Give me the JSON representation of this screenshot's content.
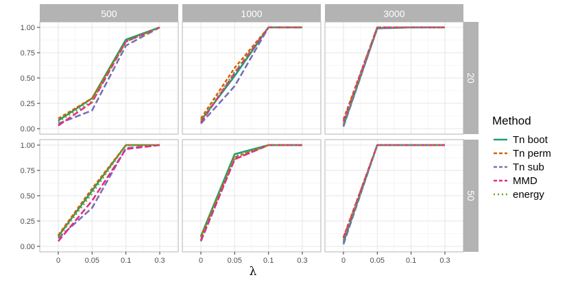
{
  "chart_data": {
    "type": "line",
    "facet_columns": [
      "500",
      "1000",
      "3000"
    ],
    "facet_rows": [
      "20",
      "50"
    ],
    "xlabel": "λ",
    "ylabel": "",
    "categories": [
      "0",
      "0.05",
      "0.1",
      "0.3"
    ],
    "y_ticks": [
      "0.00",
      "0.25",
      "0.50",
      "0.75",
      "1.00"
    ],
    "ylim": [
      0,
      1
    ],
    "grid": true,
    "legend": {
      "title": "Method",
      "position": "right",
      "entries": [
        {
          "name": "Tn boot",
          "color": "#1B9E77",
          "dash": "solid"
        },
        {
          "name": "Tn perm",
          "color": "#D95F02",
          "dash": "dashed"
        },
        {
          "name": "Tn sub",
          "color": "#7570B3",
          "dash": "longdash"
        },
        {
          "name": "MMD",
          "color": "#E7298A",
          "dash": "longdash"
        },
        {
          "name": "energy",
          "color": "#66A61E",
          "dash": "dotted"
        }
      ]
    },
    "panels": [
      {
        "col": "500",
        "row": "20",
        "series": {
          "Tn boot": [
            0.08,
            0.3,
            0.88,
            1.0
          ],
          "Tn perm": [
            0.1,
            0.3,
            0.86,
            1.0
          ],
          "Tn sub": [
            0.05,
            0.18,
            0.82,
            1.0
          ],
          "MMD": [
            0.03,
            0.26,
            0.86,
            1.0
          ],
          "energy": [
            0.07,
            0.27,
            0.86,
            1.0
          ]
        }
      },
      {
        "col": "1000",
        "row": "20",
        "series": {
          "Tn boot": [
            0.08,
            0.52,
            1.0,
            1.0
          ],
          "Tn perm": [
            0.1,
            0.6,
            1.0,
            1.0
          ],
          "Tn sub": [
            0.05,
            0.42,
            1.0,
            1.0
          ],
          "MMD": [
            0.06,
            0.55,
            1.0,
            1.0
          ],
          "energy": [
            0.08,
            0.56,
            1.0,
            1.0
          ]
        }
      },
      {
        "col": "3000",
        "row": "20",
        "series": {
          "Tn boot": [
            0.03,
            0.99,
            1.0,
            1.0
          ],
          "Tn perm": [
            0.09,
            1.0,
            1.0,
            1.0
          ],
          "Tn sub": [
            0.02,
            0.99,
            1.0,
            1.0
          ],
          "MMD": [
            0.07,
            1.0,
            1.0,
            1.0
          ],
          "energy": [
            0.05,
            1.0,
            1.0,
            1.0
          ]
        }
      },
      {
        "col": "500",
        "row": "50",
        "series": {
          "Tn boot": [
            0.1,
            0.55,
            1.0,
            1.0
          ],
          "Tn perm": [
            0.11,
            0.57,
            1.0,
            1.0
          ],
          "Tn sub": [
            0.08,
            0.38,
            0.97,
            1.0
          ],
          "MMD": [
            0.05,
            0.45,
            0.96,
            1.0
          ],
          "energy": [
            0.09,
            0.52,
            1.0,
            1.0
          ]
        }
      },
      {
        "col": "1000",
        "row": "50",
        "series": {
          "Tn boot": [
            0.1,
            0.91,
            1.0,
            1.0
          ],
          "Tn perm": [
            0.09,
            0.88,
            1.0,
            1.0
          ],
          "Tn sub": [
            0.05,
            0.86,
            1.0,
            1.0
          ],
          "MMD": [
            0.06,
            0.86,
            1.0,
            1.0
          ],
          "energy": [
            0.09,
            0.89,
            1.0,
            1.0
          ]
        }
      },
      {
        "col": "3000",
        "row": "50",
        "series": {
          "Tn boot": [
            0.04,
            1.0,
            1.0,
            1.0
          ],
          "Tn perm": [
            0.09,
            1.0,
            1.0,
            1.0
          ],
          "Tn sub": [
            0.02,
            1.0,
            1.0,
            1.0
          ],
          "MMD": [
            0.08,
            1.0,
            1.0,
            1.0
          ],
          "energy": [
            0.06,
            1.0,
            1.0,
            1.0
          ]
        }
      }
    ]
  }
}
